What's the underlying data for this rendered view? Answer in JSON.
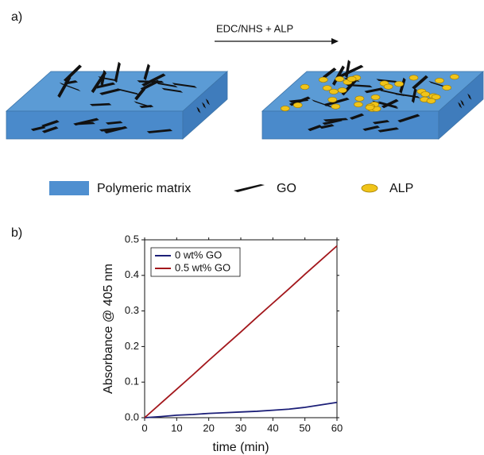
{
  "panel_labels": [
    "a)",
    "b)"
  ],
  "scheme": {
    "arrow_label": "EDC/NHS + ALP",
    "legend": [
      "Polymeric matrix",
      "GO",
      "ALP"
    ]
  },
  "chart_data": {
    "type": "line",
    "x_label": "time (min)",
    "y_label": "Absorbance @ 405 nm",
    "x": [
      0,
      5,
      10,
      15,
      20,
      25,
      30,
      35,
      40,
      45,
      50,
      55,
      60
    ],
    "series": [
      {
        "name": "0 wt% GO",
        "color": "#1c1f78",
        "values": [
          0,
          0.003,
          0.007,
          0.009,
          0.012,
          0.014,
          0.016,
          0.018,
          0.021,
          0.024,
          0.029,
          0.036,
          0.043
        ]
      },
      {
        "name": "0.5 wt% GO",
        "color": "#a3171c",
        "values": [
          0,
          0.04,
          0.08,
          0.12,
          0.161,
          0.201,
          0.241,
          0.282,
          0.322,
          0.362,
          0.403,
          0.443,
          0.483
        ]
      }
    ],
    "xlim": [
      0,
      60
    ],
    "xticks": [
      0,
      10,
      20,
      30,
      40,
      50,
      60
    ],
    "ylim": [
      0,
      0.5
    ],
    "yticks": [
      {
        "value": 0,
        "label": "0.0"
      },
      0.1,
      0.2,
      0.3,
      0.4,
      0.5
    ],
    "legend": "upper left"
  }
}
